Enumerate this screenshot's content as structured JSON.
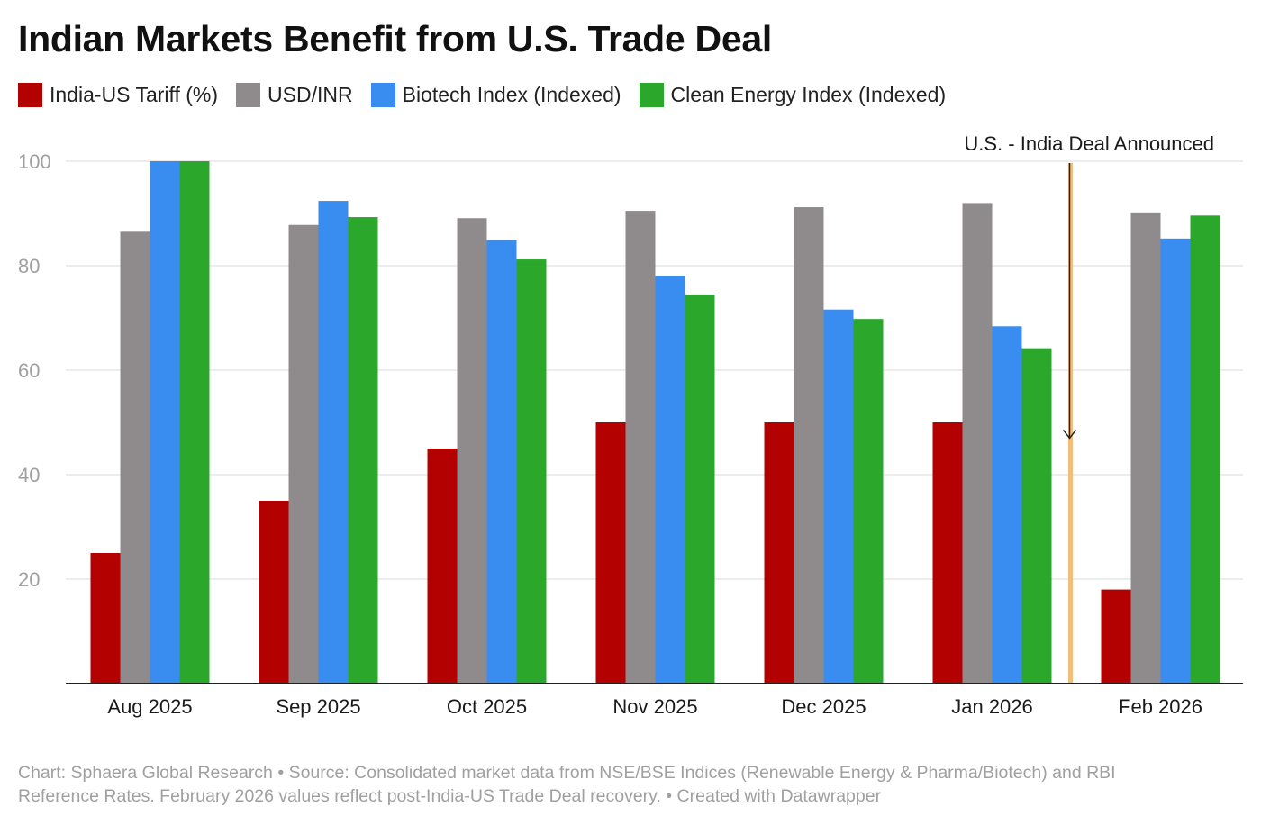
{
  "title": "Indian Markets Benefit from U.S. Trade Deal",
  "footer": {
    "line1": "Chart: Sphaera Global Research • Source: Consolidated market data from NSE/BSE Indices (Renewable Energy & Pharma/Biotech) and RBI",
    "line2": "Reference Rates. February 2026 values reflect post-India-US Trade Deal recovery. • Created with Datawrapper"
  },
  "colors": {
    "tariff": "#b30000",
    "usdinr": "#8f8b8c",
    "biotech": "#3a8df0",
    "clean": "#2ba82b",
    "marker": "#f5bd7a",
    "grid": "#e6e6e6",
    "axis": "#222222",
    "tick_label": "#a0a0a0"
  },
  "chart_data": {
    "type": "bar",
    "title": "Indian Markets Benefit from U.S. Trade Deal",
    "xlabel": "",
    "ylabel": "",
    "ylim": [
      0,
      100
    ],
    "yticks": [
      20,
      40,
      60,
      80,
      100
    ],
    "grid": true,
    "legend_position": "top-left",
    "categories": [
      "Aug 2025",
      "Sep 2025",
      "Oct 2025",
      "Nov 2025",
      "Dec 2025",
      "Jan 2026",
      "Feb 2026"
    ],
    "series": [
      {
        "name": "India-US Tariff (%)",
        "color_key": "tariff",
        "values": [
          25,
          35,
          45,
          50,
          50,
          50,
          18
        ]
      },
      {
        "name": "USD/INR",
        "color_key": "usdinr",
        "values": [
          86.5,
          87.8,
          89.1,
          90.5,
          91.2,
          92.0,
          90.2
        ]
      },
      {
        "name": "Biotech Index (Indexed)",
        "color_key": "biotech",
        "values": [
          100,
          92.4,
          84.9,
          78.1,
          71.6,
          68.4,
          85.2
        ]
      },
      {
        "name": "Clean Energy Index (Indexed)",
        "color_key": "clean",
        "values": [
          100,
          89.3,
          81.2,
          74.5,
          69.8,
          64.2,
          89.6
        ]
      }
    ],
    "annotation": {
      "text": "U.S. - India Deal Announced",
      "between_categories": [
        "Jan 2026",
        "Feb 2026"
      ],
      "arrow_to_value": 47
    }
  }
}
